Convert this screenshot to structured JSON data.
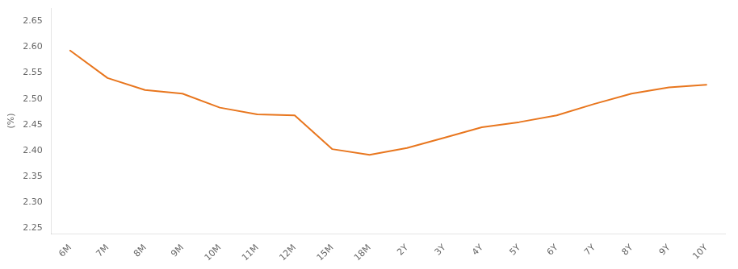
{
  "chart_data": {
    "type": "line",
    "categories": [
      "6M",
      "7M",
      "8M",
      "9M",
      "10M",
      "11M",
      "12M",
      "15M",
      "18M",
      "2Y",
      "3Y",
      "4Y",
      "5Y",
      "6Y",
      "7Y",
      "8Y",
      "9Y",
      "10Y"
    ],
    "values": [
      2.593,
      2.54,
      2.517,
      2.51,
      2.483,
      2.47,
      2.468,
      2.403,
      2.392,
      2.405,
      2.425,
      2.445,
      2.455,
      2.468,
      2.49,
      2.51,
      2.522,
      2.527
    ],
    "color": "#E8761E",
    "ylabel": "(%)",
    "ylim": [
      2.24,
      2.675
    ],
    "yticks": [
      2.25,
      {
        "value": 2.3,
        "label": "2.30"
      },
      2.35,
      {
        "value": 2.4,
        "label": "2.40"
      },
      2.45,
      {
        "value": 2.5,
        "label": "2.50"
      },
      2.55,
      {
        "value": 2.6,
        "label": "2.60"
      },
      2.65
    ],
    "grid": false
  }
}
